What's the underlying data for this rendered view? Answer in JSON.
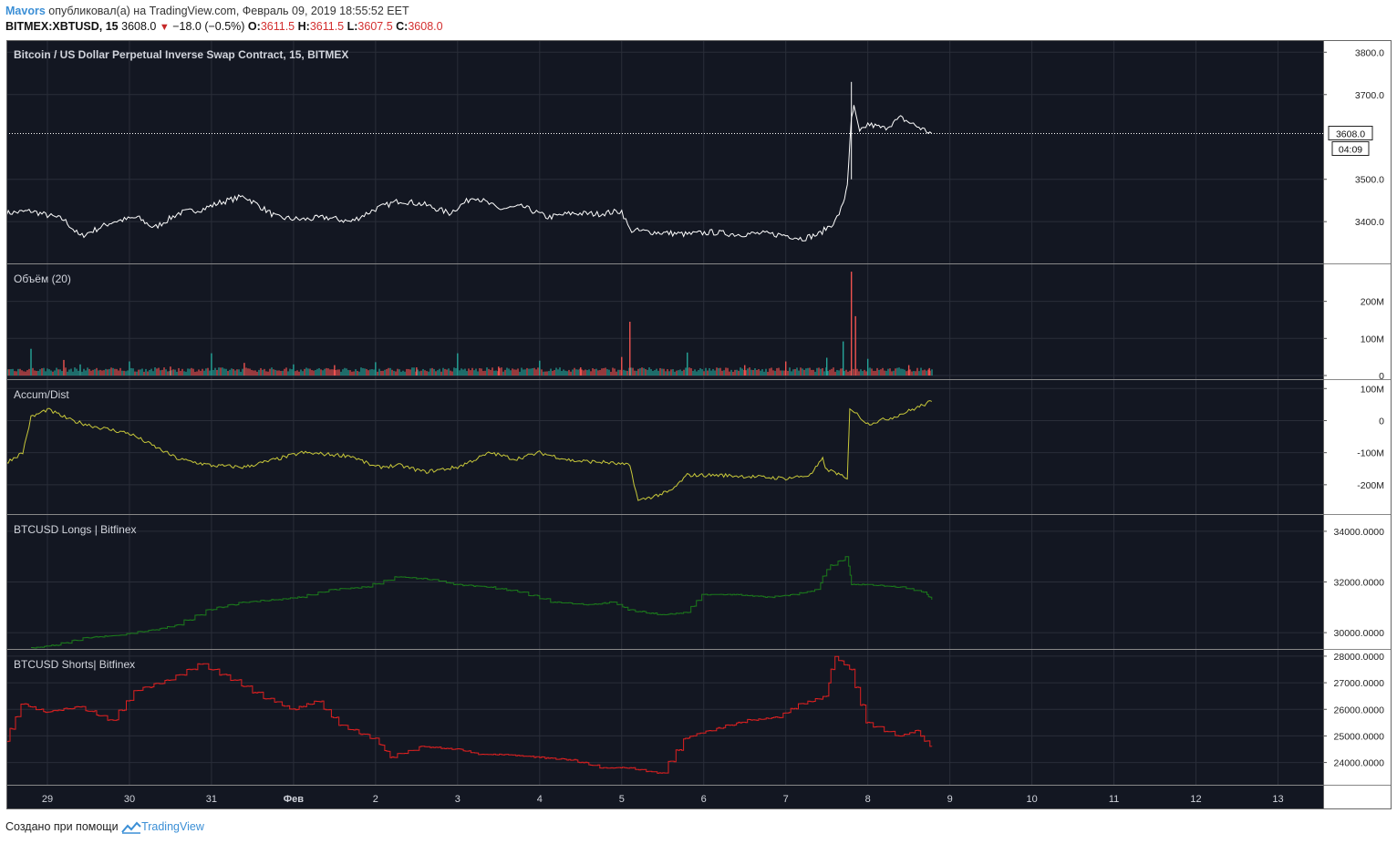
{
  "header": {
    "author": "Mavors",
    "published_text": "опубликовал(а) на TradingView.com, Февраль 09, 2019 18:55:52 EET",
    "symbol": "BITMEX:XBTUSD, 15",
    "last": "3608.0",
    "change": "−18.0 (−0.5%)",
    "o_label": "O:",
    "o_value": "3611.5",
    "h_label": "H:",
    "h_value": "3611.5",
    "l_label": "L:",
    "l_value": "3607.5",
    "c_label": "C:",
    "c_value": "3608.0"
  },
  "footer": {
    "text": "Создано при помощи",
    "brand": "TradingView"
  },
  "colors": {
    "background": "#131722",
    "grid": "#2a2e39",
    "price": "#ffffff",
    "volume_up": "#26a69a",
    "volume_down": "#ef5350",
    "accum_dist": "#c8c83a",
    "longs": "#1b7a1b",
    "shorts": "#e02020"
  },
  "chart_data": [
    {
      "type": "line",
      "title": "Bitcoin / US Dollar Perpetual Inverse Swap Contract, 15, BITMEX",
      "ylim": [
        3310,
        3820
      ],
      "y_ticks": [
        "3800.0",
        "3700.0",
        "3500.0",
        "3400.0"
      ],
      "y_tick_values": [
        3800,
        3700,
        3500,
        3400
      ],
      "last_price_label": "3608.0",
      "countdown_label": "04:09",
      "x": [
        28.5,
        28.8,
        29.2,
        29.4,
        29.8,
        30.1,
        30.3,
        30.6,
        30.9,
        31.1,
        31.4,
        31.8,
        32.1,
        32.4,
        32.7,
        33.0,
        33.3,
        33.6,
        33.9,
        34.2,
        34.5,
        34.8,
        35.1,
        35.4,
        35.7,
        36.0,
        36.1,
        36.4,
        36.8,
        37.1,
        37.4,
        37.7,
        38.0,
        38.2,
        38.4,
        38.6,
        38.7,
        38.75,
        38.8,
        38.83,
        38.9,
        39.0,
        39.2,
        39.4,
        39.6,
        39.78
      ],
      "y": [
        3420,
        3425,
        3405,
        3365,
        3400,
        3410,
        3385,
        3420,
        3430,
        3445,
        3460,
        3410,
        3405,
        3410,
        3400,
        3430,
        3450,
        3440,
        3420,
        3460,
        3430,
        3435,
        3410,
        3420,
        3418,
        3425,
        3380,
        3375,
        3370,
        3375,
        3370,
        3372,
        3368,
        3360,
        3370,
        3400,
        3440,
        3490,
        3640,
        3670,
        3610,
        3630,
        3620,
        3645,
        3625,
        3608
      ]
    },
    {
      "type": "bar",
      "title": "Объём (20)",
      "ylim": [
        0,
        290
      ],
      "y_ticks": [
        "200M",
        "100M",
        "0"
      ],
      "y_tick_values": [
        200,
        100,
        0
      ],
      "x": [
        28.8,
        29.2,
        29.4,
        30.0,
        30.5,
        31.0,
        31.4,
        32.0,
        32.5,
        33.0,
        33.5,
        34.0,
        34.5,
        35.0,
        35.5,
        36.0,
        36.1,
        36.8,
        37.5,
        38.0,
        38.5,
        38.7,
        38.8,
        38.85,
        39.0,
        39.5,
        39.75
      ],
      "values": [
        72,
        42,
        30,
        38,
        24,
        60,
        34,
        30,
        28,
        36,
        22,
        60,
        24,
        40,
        22,
        50,
        145,
        62,
        28,
        38,
        48,
        92,
        280,
        160,
        45,
        28,
        20
      ],
      "up": [
        true,
        false,
        true,
        true,
        false,
        true,
        false,
        true,
        false,
        true,
        false,
        true,
        false,
        true,
        false,
        false,
        false,
        true,
        false,
        false,
        true,
        true,
        false,
        false,
        true,
        false,
        false
      ],
      "base_value": 10,
      "base_spread": 12
    },
    {
      "type": "line",
      "title": "Accum/Dist",
      "ylim": [
        -280,
        115
      ],
      "y_ticks": [
        "100M",
        "0",
        "-100M",
        "-200M"
      ],
      "y_tick_values": [
        100,
        0,
        -100,
        -200
      ],
      "x": [
        28.5,
        28.7,
        28.8,
        29.0,
        29.3,
        29.6,
        30.0,
        30.3,
        30.6,
        31.0,
        31.4,
        31.8,
        32.1,
        32.4,
        32.7,
        33.0,
        33.3,
        33.6,
        34.0,
        34.4,
        34.7,
        35.0,
        35.4,
        35.8,
        36.1,
        36.2,
        36.6,
        36.8,
        37.2,
        37.6,
        38.0,
        38.3,
        38.45,
        38.5,
        38.6,
        38.75,
        38.78,
        39.0,
        39.3,
        39.5,
        39.78
      ],
      "y": [
        -130,
        -100,
        10,
        35,
        0,
        -20,
        -40,
        -80,
        -120,
        -140,
        -145,
        -120,
        -100,
        -105,
        -110,
        -145,
        -140,
        -160,
        -145,
        -100,
        -120,
        -100,
        -125,
        -130,
        -140,
        -250,
        -220,
        -170,
        -170,
        -175,
        -180,
        -170,
        -120,
        -155,
        -160,
        -185,
        40,
        -10,
        10,
        30,
        60
      ]
    },
    {
      "type": "line",
      "title": "BTCUSD Longs | Bitfinex",
      "ylim": [
        29500,
        34500
      ],
      "y_ticks": [
        "34000.0000",
        "32000.0000",
        "30000.0000"
      ],
      "y_tick_values": [
        34000,
        32000,
        30000
      ],
      "x": [
        28.8,
        29.1,
        29.5,
        29.9,
        30.3,
        30.6,
        31.0,
        31.4,
        31.8,
        32.1,
        32.5,
        32.9,
        33.3,
        33.7,
        34.0,
        34.4,
        34.8,
        35.2,
        35.6,
        35.9,
        36.1,
        36.5,
        36.8,
        37.0,
        37.4,
        37.8,
        38.1,
        38.4,
        38.5,
        38.75,
        38.8,
        39.0,
        39.4,
        39.7,
        39.78
      ],
      "y": [
        29400,
        29500,
        29800,
        29900,
        30100,
        30300,
        30900,
        31200,
        31300,
        31400,
        31700,
        31800,
        32200,
        32100,
        31900,
        31800,
        31600,
        31200,
        31100,
        31200,
        30900,
        30700,
        30800,
        31500,
        31500,
        31400,
        31500,
        31700,
        32500,
        33000,
        31900,
        31900,
        31800,
        31600,
        31300
      ]
    },
    {
      "type": "line",
      "title": "BTCUSD Shorts| Bitfinex",
      "ylim": [
        23300,
        28100
      ],
      "y_ticks": [
        "28000.0000",
        "27000.0000",
        "26000.0000",
        "25000.0000",
        "24000.0000"
      ],
      "y_tick_values": [
        28000,
        27000,
        26000,
        25000,
        24000
      ],
      "x": [
        28.5,
        28.7,
        29.0,
        29.4,
        29.8,
        30.1,
        30.5,
        30.9,
        31.3,
        31.7,
        32.0,
        32.3,
        32.6,
        33.0,
        33.2,
        33.6,
        34.0,
        34.3,
        34.6,
        35.0,
        35.4,
        35.8,
        36.1,
        36.5,
        36.8,
        36.85,
        37.2,
        37.6,
        37.9,
        38.2,
        38.5,
        38.6,
        38.8,
        39.0,
        39.4,
        39.6,
        39.78
      ],
      "y": [
        24800,
        26200,
        25900,
        26100,
        25600,
        26700,
        27100,
        27700,
        27100,
        26400,
        26000,
        26300,
        25400,
        24900,
        24200,
        24600,
        24500,
        24300,
        24300,
        24200,
        24100,
        23800,
        23800,
        23600,
        24900,
        25000,
        25300,
        25600,
        25700,
        26200,
        26500,
        28000,
        27500,
        25500,
        25000,
        25200,
        24600
      ]
    }
  ],
  "x_axis": {
    "xlim": [
      28.5,
      44.55
    ],
    "ticks": [
      "29",
      "30",
      "31",
      "Фев",
      "2",
      "3",
      "4",
      "5",
      "6",
      "7",
      "8",
      "9",
      "10",
      "11",
      "12",
      "13"
    ],
    "tick_values": [
      29,
      30,
      31,
      32,
      33,
      34,
      35,
      36,
      37,
      38,
      39,
      40,
      41,
      42,
      43,
      44
    ],
    "bold_tick": "Фев"
  }
}
